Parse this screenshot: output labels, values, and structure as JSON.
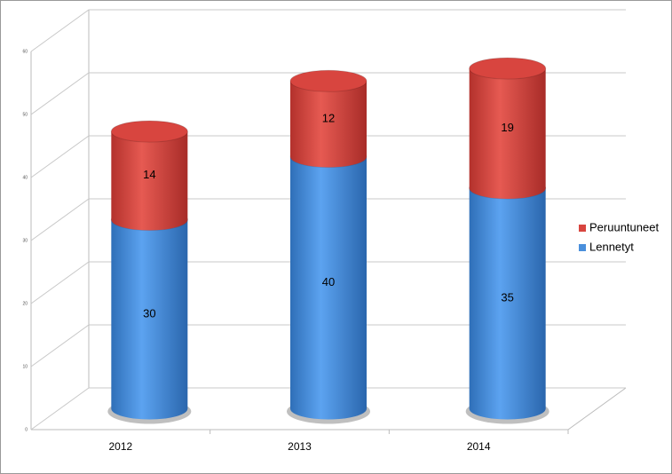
{
  "chart_data": {
    "type": "bar",
    "stacked": true,
    "style": "3d-cylinder",
    "categories": [
      "2012",
      "2013",
      "2014"
    ],
    "series": [
      {
        "name": "Lennetyt",
        "color": "#4a8fdc",
        "values": [
          30,
          40,
          35
        ]
      },
      {
        "name": "Peruuntuneet",
        "color": "#d8453f",
        "values": [
          14,
          12,
          19
        ]
      }
    ],
    "ylim": [
      0,
      60
    ],
    "yticks": [
      0,
      10,
      20,
      30,
      40,
      50,
      60
    ],
    "grid": true,
    "legend": "right"
  }
}
